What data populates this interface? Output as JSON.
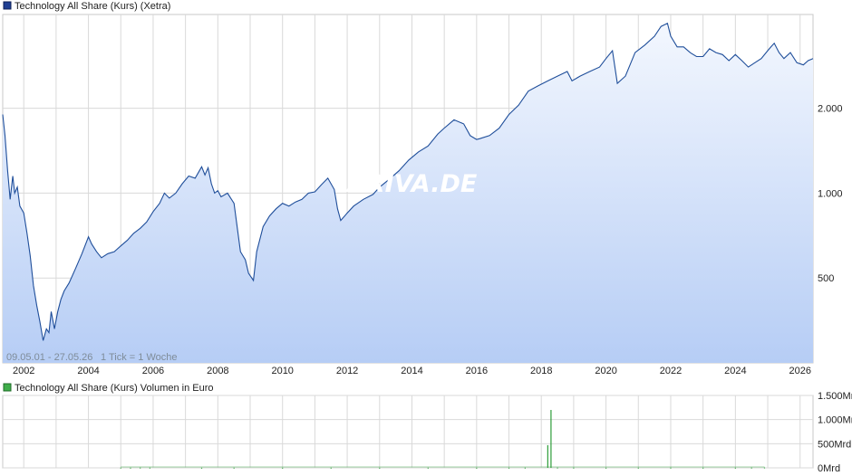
{
  "colors": {
    "price_line": "#1f4e9a",
    "area_top": "#f3f7fe",
    "area_bottom": "#b6cdf5",
    "grid": "#d9d9d9",
    "volume_bar": "#2e9e3a",
    "volume_legend": "#3fae4a",
    "price_legend": "#1f3f93"
  },
  "watermark": "ARIVA.DE",
  "chart_data": [
    {
      "type": "area",
      "title": "Technology All Share (Kurs) (Xetra)",
      "range_text": "09.05.01 - 27.05.26",
      "tick_text": "1 Tick = 1 Woche",
      "y_scale": "log",
      "ylim": [
        250,
        4300
      ],
      "xlim": [
        2001.35,
        2026.4
      ],
      "x_ticks": [
        "2002",
        "2004",
        "2006",
        "2008",
        "2010",
        "2012",
        "2014",
        "2016",
        "2018",
        "2020",
        "2022",
        "2024",
        "2026"
      ],
      "y_ticks": [
        500,
        1000,
        2000
      ],
      "y_tick_labels": [
        "500",
        "1.000",
        "2.000"
      ],
      "grid": true,
      "legend_position": "top-left",
      "series": [
        {
          "x": [
            2001.35,
            2001.42,
            2001.5,
            2001.58,
            2001.66,
            2001.72,
            2001.8,
            2001.88,
            2002.0,
            2002.1,
            2002.2,
            2002.3,
            2002.4,
            2002.5,
            2002.6,
            2002.7,
            2002.78,
            2002.85,
            2002.95,
            2003.05,
            2003.15,
            2003.25,
            2003.4,
            2003.6,
            2003.8,
            2004.0,
            2004.1,
            2004.25,
            2004.4,
            2004.6,
            2004.8,
            2005.0,
            2005.2,
            2005.4,
            2005.6,
            2005.8,
            2006.0,
            2006.2,
            2006.35,
            2006.5,
            2006.7,
            2006.9,
            2007.1,
            2007.3,
            2007.5,
            2007.6,
            2007.7,
            2007.8,
            2007.9,
            2008.0,
            2008.1,
            2008.3,
            2008.5,
            2008.7,
            2008.85,
            2008.95,
            2009.1,
            2009.2,
            2009.4,
            2009.6,
            2009.8,
            2010.0,
            2010.2,
            2010.4,
            2010.6,
            2010.8,
            2011.0,
            2011.2,
            2011.4,
            2011.6,
            2011.7,
            2011.8,
            2012.0,
            2012.2,
            2012.5,
            2012.8,
            2013.0,
            2013.3,
            2013.6,
            2013.9,
            2014.2,
            2014.5,
            2014.8,
            2015.0,
            2015.3,
            2015.6,
            2015.8,
            2016.0,
            2016.1,
            2016.4,
            2016.7,
            2017.0,
            2017.3,
            2017.6,
            2017.9,
            2018.2,
            2018.5,
            2018.8,
            2018.95,
            2019.2,
            2019.5,
            2019.8,
            2020.0,
            2020.2,
            2020.35,
            2020.6,
            2020.9,
            2021.2,
            2021.5,
            2021.7,
            2021.9,
            2022.0,
            2022.2,
            2022.4,
            2022.6,
            2022.8,
            2023.0,
            2023.2,
            2023.4,
            2023.6,
            2023.8,
            2024.0,
            2024.2,
            2024.4,
            2024.6,
            2024.8,
            2025.0,
            2025.1,
            2025.2,
            2025.35,
            2025.5,
            2025.7,
            2025.9,
            2026.1,
            2026.25,
            2026.4
          ],
          "values": [
            1900,
            1600,
            1200,
            950,
            1150,
            1000,
            1050,
            900,
            850,
            720,
            600,
            470,
            400,
            350,
            300,
            330,
            320,
            380,
            330,
            380,
            420,
            450,
            480,
            540,
            610,
            700,
            660,
            620,
            590,
            610,
            620,
            650,
            680,
            720,
            750,
            790,
            860,
            920,
            1000,
            960,
            1000,
            1080,
            1150,
            1130,
            1240,
            1160,
            1230,
            1080,
            1000,
            1020,
            970,
            1000,
            920,
            620,
            580,
            520,
            490,
            620,
            760,
            830,
            880,
            920,
            900,
            930,
            950,
            1000,
            1010,
            1070,
            1130,
            1030,
            880,
            800,
            850,
            900,
            950,
            990,
            1050,
            1120,
            1200,
            1310,
            1400,
            1470,
            1620,
            1700,
            1820,
            1760,
            1600,
            1550,
            1560,
            1600,
            1700,
            1900,
            2050,
            2300,
            2400,
            2500,
            2600,
            2700,
            2500,
            2600,
            2700,
            2800,
            3000,
            3200,
            2450,
            2600,
            3150,
            3350,
            3600,
            3900,
            4000,
            3600,
            3300,
            3300,
            3150,
            3050,
            3050,
            3250,
            3150,
            3100,
            2950,
            3100,
            2950,
            2800,
            2900,
            3000,
            3200,
            3300,
            3400,
            3150,
            3000,
            3150,
            2900,
            2850,
            2950,
            3000
          ]
        }
      ]
    },
    {
      "type": "bar",
      "title": "Technology All Share (Kurs) Volumen in Euro",
      "ylim": [
        0,
        1500
      ],
      "y_ticks": [
        0,
        500,
        1000,
        1500
      ],
      "y_tick_labels": [
        "0Mrd",
        "500Mrd",
        "1.000Mrd",
        "1.500Mrd"
      ],
      "xlim": [
        2001.35,
        2026.4
      ],
      "grid": true,
      "legend_position": "top-left",
      "series": [
        {
          "x": [
            2005.0,
            2005.3,
            2005.6,
            2005.9,
            2007.5,
            2008.5,
            2010.0,
            2011.5,
            2013.0,
            2014.5,
            2016.0,
            2017.0,
            2017.5,
            2018.2,
            2018.3,
            2018.5,
            2019.0,
            2020.0,
            2021.0,
            2022.0,
            2023.0,
            2024.0,
            2024.5,
            2024.9
          ],
          "values": [
            5,
            4,
            6,
            5,
            3,
            4,
            3,
            4,
            3,
            4,
            3,
            4,
            5,
            470,
            1200,
            6,
            5,
            4,
            4,
            5,
            4,
            4,
            6,
            8
          ]
        }
      ]
    }
  ]
}
